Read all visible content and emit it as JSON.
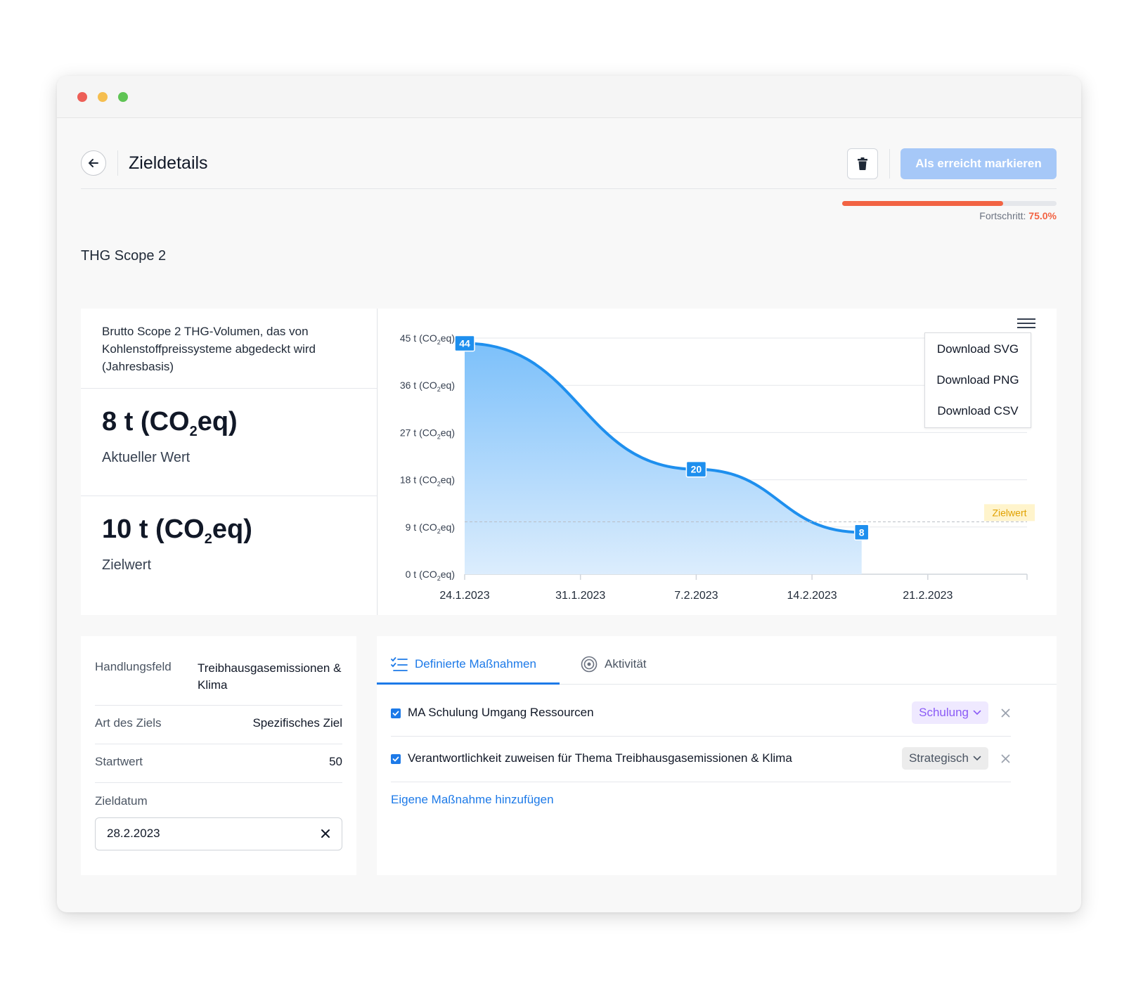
{
  "header": {
    "title": "Zieldetails",
    "mark_achieved_label": "Als erreicht markieren"
  },
  "progress": {
    "label": "Fortschritt:",
    "value_text": "75.0%",
    "fraction": 0.75,
    "color": "#f26343"
  },
  "goal": {
    "section_title": "THG Scope 2",
    "description": "Brutto Scope 2 THG-Volumen, das von Kohlenstoffpreissysteme abgedeckt wird (Jahresbasis)",
    "current": {
      "number": "8",
      "unit_prefix": "t (CO",
      "unit_sub": "2",
      "unit_suffix": "eq)",
      "label": "Aktueller Wert"
    },
    "target": {
      "number": "10",
      "unit_prefix": "t (CO",
      "unit_sub": "2",
      "unit_suffix": "eq)",
      "label": "Zielwert"
    }
  },
  "chart_data": {
    "type": "area",
    "x_tick_labels": [
      "24.1.2023",
      "31.1.2023",
      "7.2.2023",
      "14.2.2023",
      "21.2.2023"
    ],
    "x_range": [
      "2023-01-24",
      "2023-02-27"
    ],
    "y_tick_labels": [
      {
        "value": 0,
        "pre": "0 t (CO",
        "sub": "2",
        "post": "eq)"
      },
      {
        "value": 9,
        "pre": "9 t (CO",
        "sub": "2",
        "post": "eq)"
      },
      {
        "value": 18,
        "pre": "18 t (CO",
        "sub": "2",
        "post": "eq)"
      },
      {
        "value": 27,
        "pre": "27 t (CO",
        "sub": "2",
        "post": "eq)"
      },
      {
        "value": 36,
        "pre": "36 t (CO",
        "sub": "2",
        "post": "eq)"
      },
      {
        "value": 45,
        "pre": "45 t (CO",
        "sub": "2",
        "post": "eq)"
      }
    ],
    "ylim": [
      0,
      45
    ],
    "series": [
      {
        "points": [
          {
            "x": "2023-01-24",
            "y": 44,
            "label": "44"
          },
          {
            "x": "2023-02-07",
            "y": 20,
            "label": "20"
          },
          {
            "x": "2023-02-17",
            "y": 8,
            "label": "8"
          }
        ]
      }
    ],
    "target_line": {
      "y": 10,
      "label": "Zielwert"
    },
    "grid": true,
    "colors": {
      "line": "#1e8fee",
      "area_top": "#7cc0fa",
      "area_bottom": "#dcedfd",
      "label_bg": "#1e8fee",
      "target_label_bg": "#fff4cc",
      "target_label_text": "#e0a100"
    },
    "export_menu": [
      "Download SVG",
      "Download PNG",
      "Download CSV"
    ]
  },
  "info": {
    "rows": [
      {
        "label": "Handlungsfeld",
        "value": "Treibhausgasemissionen & Klima"
      },
      {
        "label": "Art des Ziels",
        "value": "Spezifisches Ziel"
      },
      {
        "label": "Startwert",
        "value": "50"
      }
    ],
    "date_label": "Zieldatum",
    "date_value": "28.2.2023"
  },
  "tabs": [
    {
      "label": "Definierte Maßnahmen",
      "active": true,
      "icon": "checklist-icon"
    },
    {
      "label": "Aktivität",
      "active": false,
      "icon": "target-icon"
    }
  ],
  "actions": [
    {
      "label": "MA Schulung Umgang Ressourcen",
      "checked": true,
      "tag": "Schulung",
      "tag_color": "#8b5cf6"
    },
    {
      "label": "Verantwortlichkeit zuweisen für Thema Treibhausgasemissionen & Klima",
      "checked": true,
      "tag": "Strategisch",
      "tag_color": "#4b5563"
    }
  ],
  "add_action_label": "Eigene Maßnahme hinzufügen"
}
